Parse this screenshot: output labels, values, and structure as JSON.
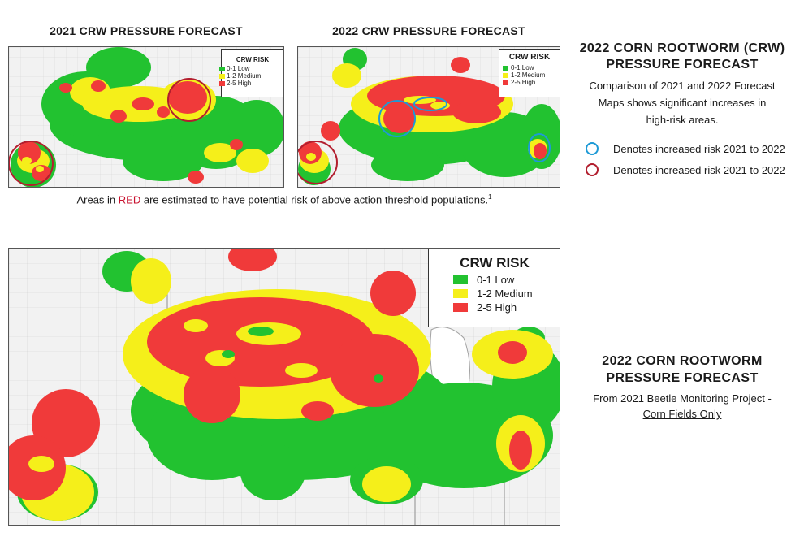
{
  "colors": {
    "low": "#22c230",
    "medium": "#f5ef1a",
    "high": "#f03a3a",
    "blue_circle": "#1e9ad6",
    "red_circle": "#b21e2e",
    "emphasis_red": "#c8102e",
    "map_bg": "#f2f2f2",
    "county_lines": "#c9c9c9",
    "state_lines": "#9a9a9a"
  },
  "map_2021": {
    "title": "2021 CRW PRESSURE FORECAST",
    "legend": {
      "title": "CRW RISK",
      "items": [
        {
          "label": "0-1 Low",
          "level": "low"
        },
        {
          "label": "1-2 Medium",
          "level": "medium"
        },
        {
          "label": "2-5 High",
          "level": "high"
        }
      ]
    }
  },
  "map_2022": {
    "title": "2022 CRW PRESSURE FORECAST",
    "legend": {
      "title": "CRW RISK",
      "items": [
        {
          "label": "0-1 Low",
          "level": "low"
        },
        {
          "label": "1-2 Medium",
          "level": "medium"
        },
        {
          "label": "2-5 High",
          "level": "high"
        }
      ]
    }
  },
  "caption": {
    "prefix": "Areas in ",
    "red_word": "RED",
    "suffix": " are estimated to have potential risk of above action threshold populations.",
    "footnote": "1"
  },
  "comparison": {
    "title_line1": "2022 CORN ROOTWORM (CRW)",
    "title_line2": "PRESSURE FORECAST",
    "description_line1": "Comparison of 2021 and 2022 Forecast",
    "description_line2": "Maps shows significant increases in",
    "description_line3": "high-risk areas.",
    "key": [
      {
        "color": "blue_circle",
        "label": "Denotes increased risk 2021 to 2022"
      },
      {
        "color": "red_circle",
        "label": "Denotes increased risk 2021 to 2022"
      }
    ]
  },
  "large_map": {
    "legend": {
      "title": "CRW RISK",
      "items": [
        {
          "label": "0-1 Low",
          "level": "low"
        },
        {
          "label": "1-2 Medium",
          "level": "medium"
        },
        {
          "label": "2-5 High",
          "level": "high"
        }
      ]
    }
  },
  "forecast_2022": {
    "title_line1": "2022 CORN ROOTWORM",
    "title_line2": "PRESSURE FORECAST",
    "subtitle": "From 2021 Beetle Monitoring Project -",
    "link": "Corn Fields Only"
  }
}
